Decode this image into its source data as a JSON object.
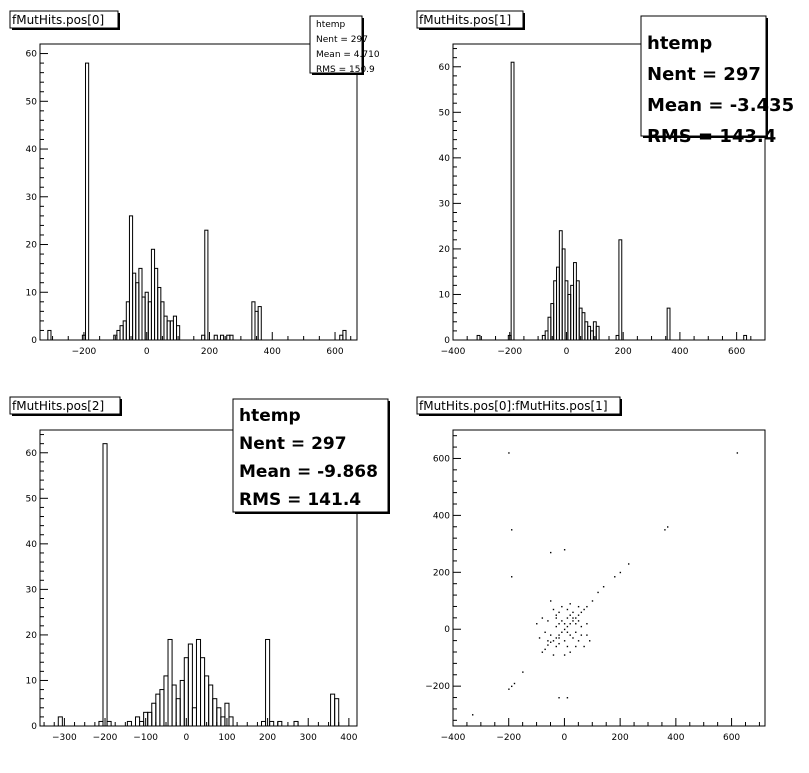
{
  "chart_data": [
    {
      "type": "bar",
      "title": "fMutHits.pos[0]",
      "xlim": [
        -340,
        670
      ],
      "ylim": [
        0,
        62
      ],
      "xticks": [
        -200,
        0,
        200,
        400,
        600
      ],
      "yticks": [
        0,
        10,
        20,
        30,
        40,
        50,
        60
      ],
      "bin_width": 10,
      "bins": [
        {
          "x": -310,
          "y": 2
        },
        {
          "x": -200,
          "y": 1
        },
        {
          "x": -190,
          "y": 58
        },
        {
          "x": -100,
          "y": 1
        },
        {
          "x": -90,
          "y": 2
        },
        {
          "x": -80,
          "y": 3
        },
        {
          "x": -70,
          "y": 4
        },
        {
          "x": -60,
          "y": 8
        },
        {
          "x": -50,
          "y": 26
        },
        {
          "x": -40,
          "y": 14
        },
        {
          "x": -30,
          "y": 12
        },
        {
          "x": -20,
          "y": 15
        },
        {
          "x": -10,
          "y": 9
        },
        {
          "x": 0,
          "y": 10
        },
        {
          "x": 10,
          "y": 8
        },
        {
          "x": 20,
          "y": 19
        },
        {
          "x": 30,
          "y": 15
        },
        {
          "x": 40,
          "y": 11
        },
        {
          "x": 50,
          "y": 8
        },
        {
          "x": 60,
          "y": 5
        },
        {
          "x": 70,
          "y": 4
        },
        {
          "x": 80,
          "y": 4
        },
        {
          "x": 90,
          "y": 5
        },
        {
          "x": 100,
          "y": 3
        },
        {
          "x": 180,
          "y": 1
        },
        {
          "x": 190,
          "y": 23
        },
        {
          "x": 220,
          "y": 1
        },
        {
          "x": 240,
          "y": 1
        },
        {
          "x": 260,
          "y": 1
        },
        {
          "x": 270,
          "y": 1
        },
        {
          "x": 340,
          "y": 8
        },
        {
          "x": 350,
          "y": 6
        },
        {
          "x": 360,
          "y": 7
        },
        {
          "x": 620,
          "y": 1
        },
        {
          "x": 630,
          "y": 2
        }
      ],
      "stats": {
        "name": "htemp",
        "lines": [
          "Nent  = 297",
          "Mean  =  4.710",
          "RMS   =  150.9"
        ]
      }
    },
    {
      "type": "bar",
      "title": "fMutHits.pos[1]",
      "xlim": [
        -400,
        700
      ],
      "ylim": [
        0,
        65
      ],
      "xticks": [
        -400,
        -200,
        0,
        200,
        400,
        600
      ],
      "yticks": [
        0,
        10,
        20,
        30,
        40,
        50,
        60
      ],
      "bin_width": 10,
      "bins": [
        {
          "x": -310,
          "y": 1
        },
        {
          "x": -200,
          "y": 1
        },
        {
          "x": -190,
          "y": 61
        },
        {
          "x": -80,
          "y": 1
        },
        {
          "x": -70,
          "y": 2
        },
        {
          "x": -60,
          "y": 5
        },
        {
          "x": -50,
          "y": 8
        },
        {
          "x": -40,
          "y": 13
        },
        {
          "x": -30,
          "y": 16
        },
        {
          "x": -20,
          "y": 24
        },
        {
          "x": -10,
          "y": 20
        },
        {
          "x": 0,
          "y": 13
        },
        {
          "x": 10,
          "y": 10
        },
        {
          "x": 20,
          "y": 12
        },
        {
          "x": 30,
          "y": 17
        },
        {
          "x": 40,
          "y": 13
        },
        {
          "x": 50,
          "y": 7
        },
        {
          "x": 60,
          "y": 6
        },
        {
          "x": 70,
          "y": 4
        },
        {
          "x": 80,
          "y": 3
        },
        {
          "x": 90,
          "y": 2
        },
        {
          "x": 100,
          "y": 4
        },
        {
          "x": 110,
          "y": 3
        },
        {
          "x": 180,
          "y": 1
        },
        {
          "x": 190,
          "y": 22
        },
        {
          "x": 360,
          "y": 7
        },
        {
          "x": 630,
          "y": 1
        }
      ],
      "stats": {
        "name": "htemp",
        "lines": [
          "Nent = 297",
          "Mean  = -3.435",
          "RMS   =  143.4"
        ]
      }
    },
    {
      "type": "bar",
      "title": "fMutHits.pos[2]",
      "xlim": [
        -360,
        420
      ],
      "ylim": [
        0,
        65
      ],
      "xticks": [
        -300,
        -200,
        -100,
        0,
        100,
        200,
        300,
        400
      ],
      "yticks": [
        0,
        10,
        20,
        30,
        40,
        50,
        60
      ],
      "bin_width": 10,
      "bins": [
        {
          "x": -310,
          "y": 2
        },
        {
          "x": -210,
          "y": 1
        },
        {
          "x": -200,
          "y": 62
        },
        {
          "x": -190,
          "y": 1
        },
        {
          "x": -140,
          "y": 1
        },
        {
          "x": -120,
          "y": 2
        },
        {
          "x": -110,
          "y": 1
        },
        {
          "x": -100,
          "y": 3
        },
        {
          "x": -90,
          "y": 3
        },
        {
          "x": -80,
          "y": 5
        },
        {
          "x": -70,
          "y": 7
        },
        {
          "x": -60,
          "y": 8
        },
        {
          "x": -50,
          "y": 11
        },
        {
          "x": -40,
          "y": 19
        },
        {
          "x": -30,
          "y": 9
        },
        {
          "x": -20,
          "y": 6
        },
        {
          "x": -10,
          "y": 10
        },
        {
          "x": 0,
          "y": 15
        },
        {
          "x": 10,
          "y": 18
        },
        {
          "x": 20,
          "y": 4
        },
        {
          "x": 30,
          "y": 19
        },
        {
          "x": 40,
          "y": 15
        },
        {
          "x": 50,
          "y": 11
        },
        {
          "x": 60,
          "y": 9
        },
        {
          "x": 70,
          "y": 6
        },
        {
          "x": 80,
          "y": 4
        },
        {
          "x": 90,
          "y": 2
        },
        {
          "x": 100,
          "y": 5
        },
        {
          "x": 110,
          "y": 2
        },
        {
          "x": 190,
          "y": 1
        },
        {
          "x": 200,
          "y": 19
        },
        {
          "x": 210,
          "y": 1
        },
        {
          "x": 230,
          "y": 1
        },
        {
          "x": 270,
          "y": 1
        },
        {
          "x": 360,
          "y": 7
        },
        {
          "x": 370,
          "y": 6
        }
      ],
      "stats": {
        "name": "htemp",
        "lines": [
          "Nent = 297",
          "Mean  = -9.868",
          "RMS   =  141.4"
        ]
      }
    },
    {
      "type": "scatter",
      "title": "fMutHits.pos[0]:fMutHits.pos[1]",
      "xlim": [
        -400,
        720
      ],
      "ylim": [
        -340,
        700
      ],
      "xticks": [
        -400,
        -200,
        0,
        200,
        400,
        600
      ],
      "yticks": [
        -200,
        0,
        200,
        400,
        600
      ],
      "points": [
        [
          -330,
          -300
        ],
        [
          -200,
          620
        ],
        [
          -190,
          350
        ],
        [
          -190,
          185
        ],
        [
          -200,
          -210
        ],
        [
          -190,
          -200
        ],
        [
          -180,
          -190
        ],
        [
          -150,
          -150
        ],
        [
          -80,
          -80
        ],
        [
          -70,
          -70
        ],
        [
          -60,
          -55
        ],
        [
          -50,
          -45
        ],
        [
          -40,
          -40
        ],
        [
          -30,
          -30
        ],
        [
          -20,
          -20
        ],
        [
          -10,
          -10
        ],
        [
          0,
          0
        ],
        [
          10,
          10
        ],
        [
          20,
          20
        ],
        [
          30,
          30
        ],
        [
          40,
          40
        ],
        [
          50,
          50
        ],
        [
          60,
          60
        ],
        [
          70,
          70
        ],
        [
          80,
          80
        ],
        [
          100,
          100
        ],
        [
          120,
          130
        ],
        [
          140,
          150
        ],
        [
          180,
          185
        ],
        [
          200,
          200
        ],
        [
          230,
          230
        ],
        [
          -50,
          270
        ],
        [
          0,
          280
        ],
        [
          370,
          360
        ],
        [
          360,
          350
        ],
        [
          620,
          620
        ],
        [
          -50,
          100
        ],
        [
          -40,
          70
        ],
        [
          -20,
          60
        ],
        [
          -10,
          80
        ],
        [
          10,
          70
        ],
        [
          20,
          90
        ],
        [
          40,
          20
        ],
        [
          30,
          -30
        ],
        [
          -60,
          30
        ],
        [
          -30,
          10
        ],
        [
          -20,
          -50
        ],
        [
          0,
          -40
        ],
        [
          20,
          -80
        ],
        [
          40,
          -60
        ],
        [
          60,
          -20
        ],
        [
          60,
          10
        ],
        [
          -70,
          -10
        ],
        [
          -50,
          -20
        ],
        [
          -30,
          50
        ],
        [
          10,
          -10
        ],
        [
          30,
          60
        ],
        [
          50,
          -40
        ],
        [
          80,
          20
        ],
        [
          -80,
          40
        ],
        [
          -40,
          -90
        ],
        [
          0,
          -90
        ],
        [
          10,
          40
        ],
        [
          -10,
          30
        ],
        [
          20,
          -20
        ],
        [
          -20,
          20
        ],
        [
          50,
          30
        ],
        [
          -60,
          -40
        ],
        [
          0,
          20
        ],
        [
          -30,
          -60
        ],
        [
          40,
          -10
        ],
        [
          70,
          -60
        ],
        [
          -90,
          -30
        ],
        [
          90,
          -40
        ],
        [
          30,
          40
        ],
        [
          -20,
          -30
        ],
        [
          20,
          50
        ],
        [
          10,
          -60
        ],
        [
          -100,
          20
        ],
        [
          50,
          80
        ],
        [
          -20,
          -240
        ],
        [
          10,
          -240
        ],
        [
          -30,
          40
        ],
        [
          80,
          -20
        ]
      ]
    }
  ]
}
